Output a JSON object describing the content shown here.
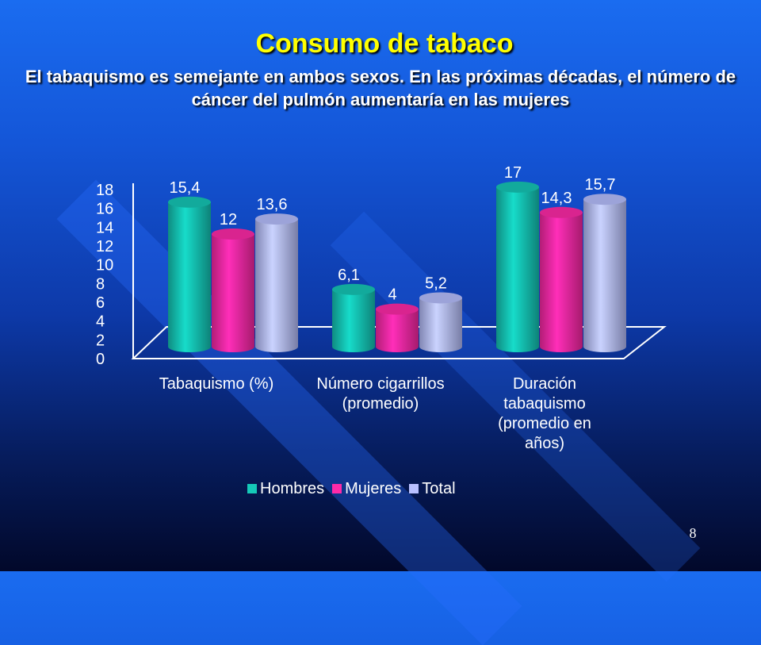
{
  "slide": {
    "title": "Consumo de tabaco",
    "subtitle": "El tabaquismo es semejante en ambos sexos.  En las próximas décadas, el número de cáncer del pulmón aumentaría en las mujeres",
    "page_number": "8",
    "colors": {
      "title": "#ffff00",
      "background_top": "#1a6cf0",
      "background_bottom": "#02082a"
    }
  },
  "chart_data": {
    "type": "bar",
    "title": "",
    "xlabel": "",
    "ylabel": "",
    "categories": [
      "Tabaquismo (%)",
      "Número cigarrillos (promedio)",
      "Duración tabaquismo (promedio en años)"
    ],
    "category_label_lines": [
      [
        "Tabaquismo (%)"
      ],
      [
        "Número cigarrillos",
        "(promedio)"
      ],
      [
        "Duración",
        "tabaquismo",
        "(promedio en",
        "años)"
      ]
    ],
    "series": [
      {
        "name": "Hombres",
        "values": [
          15.4,
          6.1,
          17
        ],
        "labels": [
          "15,4",
          "6,1",
          "17"
        ],
        "color": "#15c8b8"
      },
      {
        "name": "Mujeres",
        "values": [
          12,
          4,
          14.3
        ],
        "labels": [
          "12",
          "4",
          "14,3"
        ],
        "color": "#ff2aa8"
      },
      {
        "name": "Total",
        "values": [
          13.6,
          5.2,
          15.7
        ],
        "labels": [
          "13,6",
          "5,2",
          "15,7"
        ],
        "color": "#b8c0ff"
      }
    ],
    "ylim": [
      0,
      18
    ],
    "yticks": [
      "0",
      "2",
      "4",
      "6",
      "8",
      "10",
      "12",
      "14",
      "16",
      "18"
    ],
    "grid": false,
    "legend_position": "bottom",
    "style": "3d-cylinder"
  }
}
